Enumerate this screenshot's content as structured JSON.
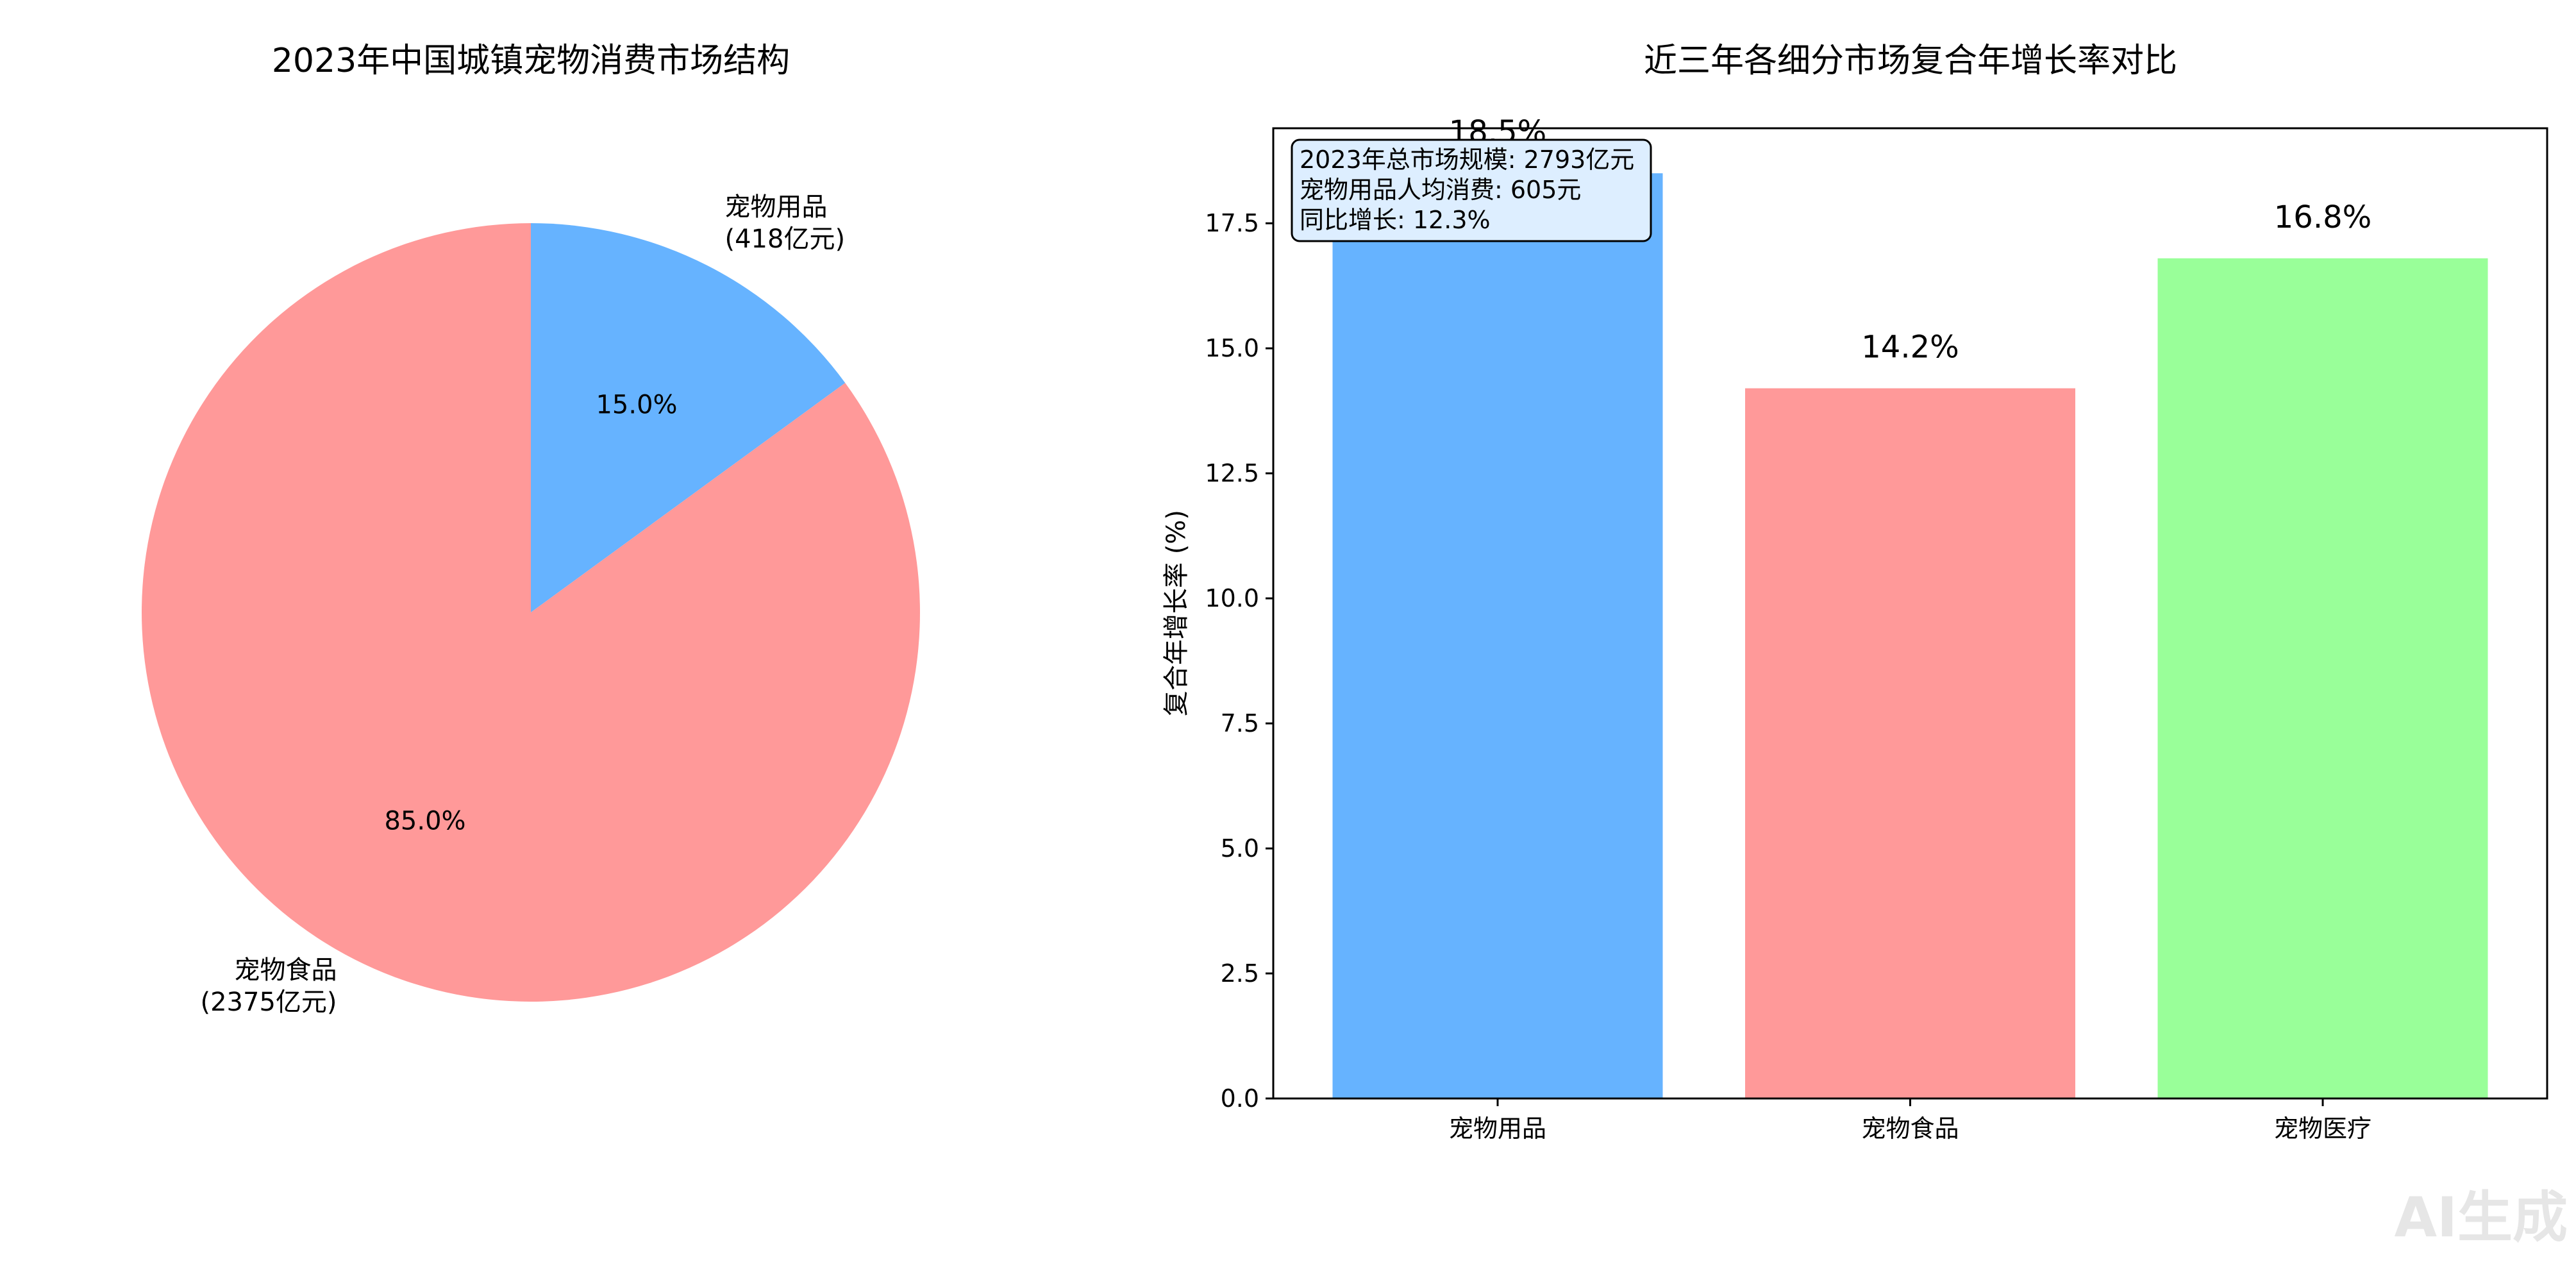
{
  "chart_data": [
    {
      "type": "pie",
      "title": "2023年中国城镇宠物消费市场结构",
      "slices": [
        {
          "name": "宠物用品",
          "value": 418,
          "percent": 15.0,
          "label_line1": "宠物用品",
          "label_line2": "(418亿元)",
          "pct_label": "15.0%",
          "color": "#66b3ff"
        },
        {
          "name": "宠物食品",
          "value": 2375,
          "percent": 85.0,
          "label_line1": "宠物食品",
          "label_line2": "(2375亿元)",
          "pct_label": "85.0%",
          "color": "#ff9999"
        }
      ],
      "start_angle": 90,
      "direction": "clockwise"
    },
    {
      "type": "bar",
      "title": "近三年各细分市场复合年增长率对比",
      "categories": [
        "宠物用品",
        "宠物食品",
        "宠物医疗"
      ],
      "values": [
        18.5,
        14.2,
        16.8
      ],
      "value_labels": [
        "18.5%",
        "14.2%",
        "16.8%"
      ],
      "colors": [
        "#66b3ff",
        "#ff9999",
        "#99ff99"
      ],
      "ylabel": "复合年增长率 (%)",
      "xlabel": "",
      "ylim": [
        0,
        19.4
      ],
      "yticks": [
        0.0,
        2.5,
        5.0,
        7.5,
        10.0,
        12.5,
        15.0,
        17.5
      ],
      "ytick_labels": [
        "0.0",
        "2.5",
        "5.0",
        "7.5",
        "10.0",
        "12.5",
        "15.0",
        "17.5"
      ],
      "grid": false,
      "annotation": {
        "lines": [
          "2023年总市场规模: 2793亿元",
          "宠物用品人均消费: 605元",
          "同比增长: 12.3%"
        ],
        "placement": "top-left",
        "box_color": "#ddeeff"
      }
    }
  ],
  "watermark": "AI生成"
}
